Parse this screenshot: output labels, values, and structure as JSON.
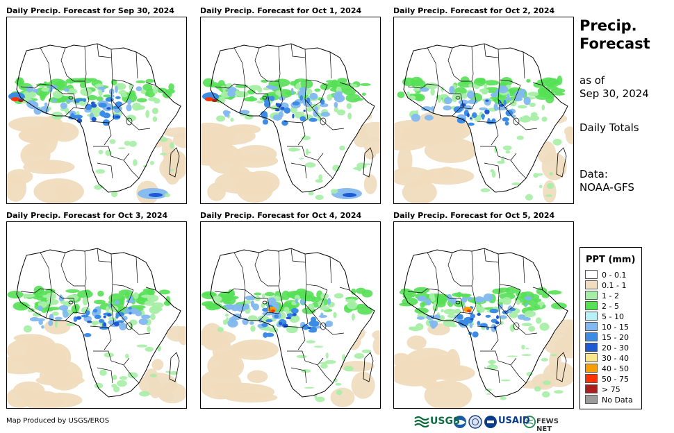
{
  "panels": [
    {
      "title": "Daily Precip. Forecast for Sep 30, 2024"
    },
    {
      "title": "Daily Precip. Forecast for Oct 1, 2024"
    },
    {
      "title": "Daily Precip. Forecast for Oct 2, 2024"
    },
    {
      "title": "Daily Precip. Forecast for Oct 3, 2024"
    },
    {
      "title": "Daily Precip. Forecast for Oct 4, 2024"
    },
    {
      "title": "Daily Precip. Forecast for Oct 5, 2024"
    }
  ],
  "sidebar": {
    "title_line1": "Precip.",
    "title_line2": "Forecast",
    "asof_line1": "as of",
    "asof_line2": "Sep 30, 2024",
    "totals": "Daily Totals",
    "data_line1": "Data:",
    "data_line2": "NOAA-GFS"
  },
  "legend": {
    "title": "PPT (mm)",
    "items": [
      {
        "label": "0 - 0.1",
        "color": "#ffffff"
      },
      {
        "label": "0.1 - 1",
        "color": "#f0dcbe"
      },
      {
        "label": "1 - 2",
        "color": "#a6eea6"
      },
      {
        "label": "2 - 5",
        "color": "#55e055"
      },
      {
        "label": "5 - 10",
        "color": "#b8f0f8"
      },
      {
        "label": "10 - 15",
        "color": "#82b8f0"
      },
      {
        "label": "15 - 20",
        "color": "#3c8ce6"
      },
      {
        "label": "20 - 30",
        "color": "#1e5ad2"
      },
      {
        "label": "30 - 40",
        "color": "#fae68c"
      },
      {
        "label": "40 - 50",
        "color": "#f5a000"
      },
      {
        "label": "50 - 75",
        "color": "#ff3200"
      },
      {
        "label": "> 75",
        "color": "#aa1e1e"
      },
      {
        "label": "No Data",
        "color": "#9b9b9b"
      }
    ]
  },
  "footer": {
    "credit": "Map Produced by USGS/EROS",
    "logo_usgs": "USGS",
    "logo_usaid": "USAID",
    "logo_fews": "FEWS NET"
  }
}
